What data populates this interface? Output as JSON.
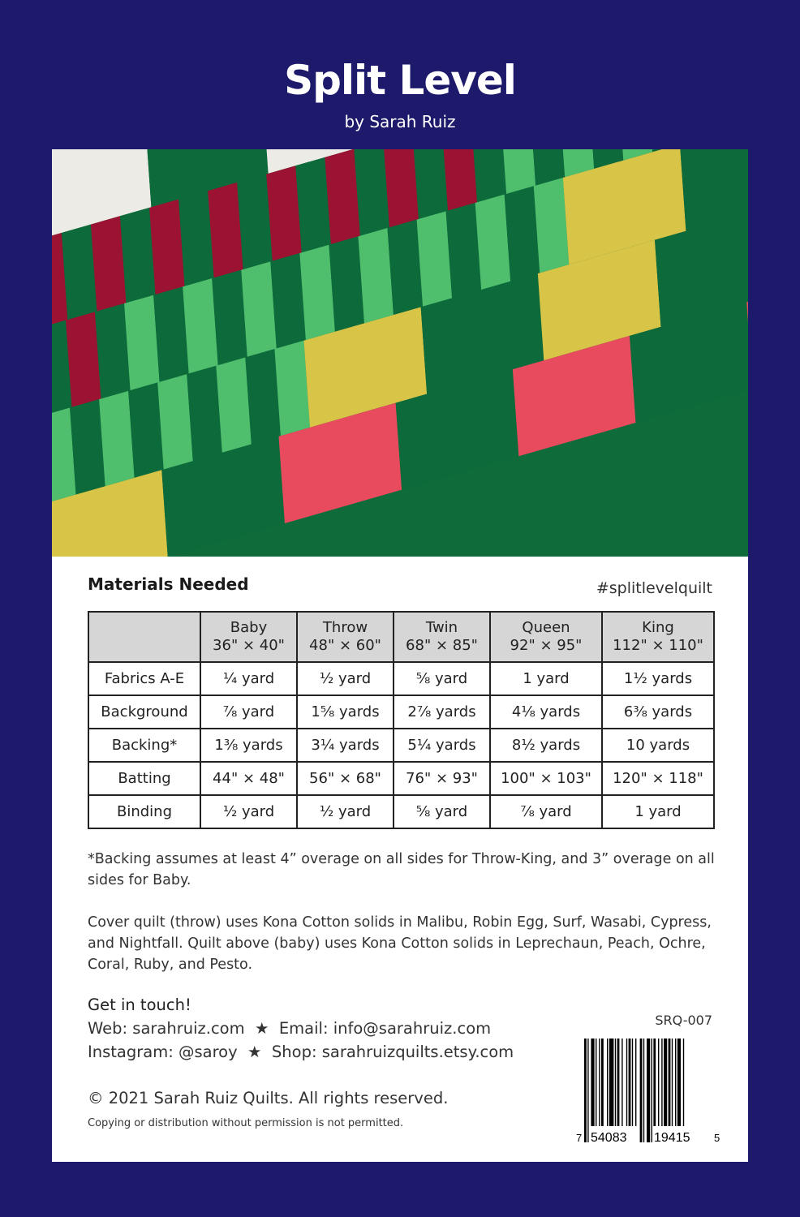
{
  "title": "Split Level",
  "byline": "by Sarah Ruiz",
  "photo": {
    "colors": {
      "dark_green": "#0d6a3a",
      "light_green": "#4fbf6e",
      "ruby": "#9b1232",
      "coral": "#e94b5e",
      "white": "#ecebe6",
      "ochre": "#d8c447"
    }
  },
  "materials": {
    "heading": "Materials Needed",
    "hashtag": "#splitlevelquilt",
    "columns": [
      {
        "name": "Baby",
        "size": "36\" × 40\""
      },
      {
        "name": "Throw",
        "size": "48\" × 60\""
      },
      {
        "name": "Twin",
        "size": "68\" × 85\""
      },
      {
        "name": "Queen",
        "size": "92\" × 95\""
      },
      {
        "name": "King",
        "size": "112\" × 110\""
      }
    ],
    "rows": [
      {
        "label": "Fabrics A-E",
        "values": [
          "¼ yard",
          "½ yard",
          "⅝ yard",
          "1 yard",
          "1½ yards"
        ]
      },
      {
        "label": "Background",
        "values": [
          "⅞ yard",
          "1⅝ yards",
          "2⅞ yards",
          "4⅛ yards",
          "6⅜ yards"
        ]
      },
      {
        "label": "Backing*",
        "values": [
          "1⅜ yards",
          "3¼ yards",
          "5¼ yards",
          "8½ yards",
          "10 yards"
        ]
      },
      {
        "label": "Batting",
        "values": [
          "44\" × 48\"",
          "56\" × 68\"",
          "76\" × 93\"",
          "100\" × 103\"",
          "120\" × 118\""
        ]
      },
      {
        "label": "Binding",
        "values": [
          "½ yard",
          "½ yard",
          "⅝ yard",
          "⅞ yard",
          "1 yard"
        ]
      }
    ]
  },
  "notes": {
    "backing": "*Backing assumes at least 4” overage on all sides for Throw-King, and 3” overage on all sides for Baby.",
    "fabrics": "Cover quilt (throw) uses Kona Cotton solids in Malibu, Robin Egg, Surf, Wasabi, Cypress, and Nightfall. Quilt above (baby) uses Kona Cotton solids in Leprechaun, Peach, Ochre, Coral, Ruby, and Pesto."
  },
  "contact": {
    "heading": "Get in touch!",
    "line1": "Web: sarahruiz.com  ★  Email: info@sarahruiz.com",
    "line2": "Instagram: @saroy  ★  Shop: sarahruizquilts.etsy.com"
  },
  "copyright": "© 2021 Sarah Ruiz Quilts. All rights reserved.",
  "legal": "Copying or distribution without permission is not permitted.",
  "sku": "SRQ-007",
  "barcode": {
    "first": "7",
    "left": "54083",
    "right": "19415",
    "last": "5"
  }
}
